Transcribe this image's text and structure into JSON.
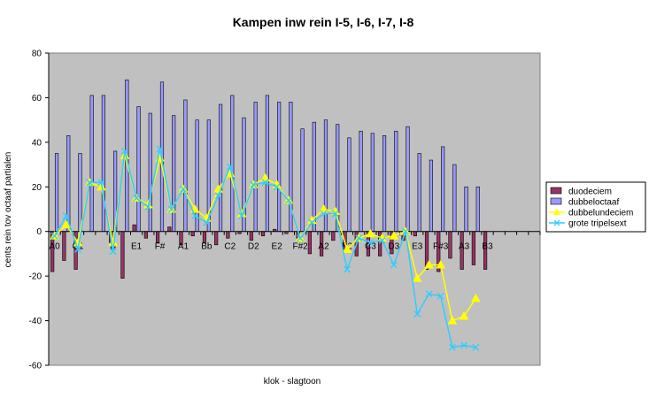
{
  "chart_data": {
    "type": "bar",
    "title": "Kampen inw rein I-5, I-6, I-7, I-8",
    "xlabel": "klok - slagtoon",
    "ylabel": "cents rein tov octaaf partialen",
    "ylim": [
      -60,
      80
    ],
    "yticks": [
      -60,
      -40,
      -20,
      0,
      20,
      40,
      60,
      80
    ],
    "grid": false,
    "legend_position": "right",
    "category_count": 42,
    "category_labels": [
      {
        "index": 0,
        "label": "A0"
      },
      {
        "index": 2,
        "label": "C1"
      },
      {
        "index": 5,
        "label": "D"
      },
      {
        "index": 7,
        "label": "E1"
      },
      {
        "index": 9,
        "label": "F#"
      },
      {
        "index": 11,
        "label": "A1"
      },
      {
        "index": 13,
        "label": "Bb"
      },
      {
        "index": 15,
        "label": "C2"
      },
      {
        "index": 17,
        "label": "D2"
      },
      {
        "index": 19,
        "label": "E2"
      },
      {
        "index": 21,
        "label": "F#2"
      },
      {
        "index": 23,
        "label": "A2"
      },
      {
        "index": 25,
        "label": "B2"
      },
      {
        "index": 27,
        "label": "C3"
      },
      {
        "index": 29,
        "label": "D3"
      },
      {
        "index": 31,
        "label": "E3"
      },
      {
        "index": 33,
        "label": "F#3"
      },
      {
        "index": 35,
        "label": "A3"
      },
      {
        "index": 37,
        "label": "B3"
      }
    ],
    "series": [
      {
        "name": "duodeciem",
        "type": "bar",
        "color": "#993366",
        "values": [
          -18,
          -13,
          -17,
          0,
          0,
          -5,
          -21,
          3,
          -3,
          -5,
          2,
          -6,
          -2,
          -5,
          -6,
          -3,
          -1,
          -4,
          -2,
          1,
          -1,
          -3,
          -10,
          -11,
          -4,
          -9,
          -11,
          -11,
          -11,
          -10,
          -4,
          -2,
          -17,
          -18,
          -12,
          -17,
          -15,
          -17,
          0,
          0,
          0,
          0
        ]
      },
      {
        "name": "dubbeloctaaf",
        "type": "bar",
        "color": "#9999ff",
        "values": [
          35,
          43,
          35,
          61,
          61,
          36,
          68,
          56,
          53,
          67,
          52,
          59,
          50,
          50,
          57,
          61,
          51,
          58,
          61,
          58,
          58,
          46,
          49,
          50,
          48,
          42,
          45,
          44,
          43,
          45,
          47,
          35,
          32,
          38,
          30,
          20,
          20,
          0,
          0,
          0,
          0,
          0
        ]
      },
      {
        "name": "dubbelundeciem",
        "type": "line",
        "color": "#ffff00",
        "values": [
          -2,
          3,
          -5,
          22,
          20,
          -5,
          34,
          15,
          12,
          33,
          10,
          19,
          10,
          6,
          19,
          26,
          8,
          21,
          24,
          21,
          14,
          -3,
          5,
          10,
          9,
          -8,
          -3,
          -1,
          -3,
          -2,
          0,
          -21,
          -15,
          -15,
          -40,
          -38,
          -30
        ]
      },
      {
        "name": "grote tripelsext",
        "type": "line",
        "color": "#33ccff",
        "values": [
          -2,
          7,
          -8,
          22,
          22,
          -9,
          36,
          15,
          11,
          37,
          10,
          19,
          7,
          4,
          16,
          29,
          7,
          21,
          22,
          20,
          14,
          -3,
          4,
          8,
          8,
          -17,
          -3,
          -5,
          -4,
          -15,
          0,
          -37,
          -28,
          -29,
          -52,
          -51,
          -52
        ]
      }
    ]
  }
}
